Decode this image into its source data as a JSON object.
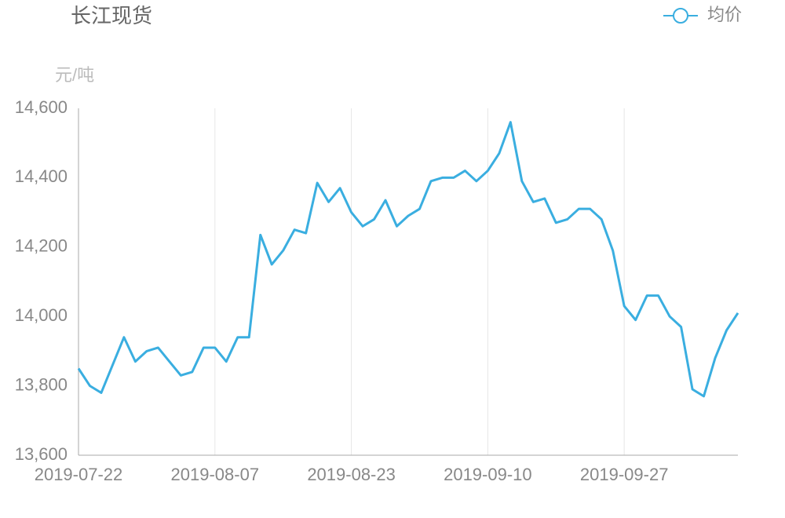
{
  "chart_data": {
    "type": "line",
    "title": "长江现货",
    "y_label": "元/吨",
    "categories": [
      "2019-07-22",
      null,
      null,
      null,
      null,
      null,
      null,
      null,
      null,
      null,
      null,
      null,
      "2019-08-07",
      null,
      null,
      null,
      null,
      null,
      null,
      null,
      null,
      null,
      null,
      null,
      "2019-08-23",
      null,
      null,
      null,
      null,
      null,
      null,
      null,
      null,
      null,
      null,
      null,
      "2019-09-10",
      null,
      null,
      null,
      null,
      null,
      null,
      null,
      null,
      null,
      null,
      null,
      "2019-09-27",
      null,
      null,
      null,
      null,
      null,
      null,
      null,
      null,
      null,
      null
    ],
    "series": [
      {
        "name": "均价",
        "color": "#3aaee0",
        "values": [
          13850,
          13800,
          13780,
          13860,
          13940,
          13870,
          13900,
          13910,
          13870,
          13830,
          13840,
          13910,
          13910,
          13870,
          13940,
          13940,
          14235,
          14150,
          14190,
          14250,
          14240,
          14385,
          14330,
          14370,
          14300,
          14260,
          14280,
          14335,
          14260,
          14290,
          14310,
          14390,
          14400,
          14400,
          14420,
          14390,
          14420,
          14470,
          14560,
          14390,
          14330,
          14340,
          14270,
          14280,
          14310,
          14310,
          14280,
          14190,
          14030,
          13990,
          14060,
          14060,
          14000,
          13970,
          13790,
          13770,
          13880,
          13960,
          14010
        ]
      }
    ],
    "ylim": [
      13600,
      14600
    ],
    "yticks": [
      {
        "value": 13600,
        "label": "13,600"
      },
      {
        "value": 13800,
        "label": "13,800"
      },
      {
        "value": 14000,
        "label": "14,000"
      },
      {
        "value": 14200,
        "label": "14,200"
      },
      {
        "value": 14400,
        "label": "14,400"
      },
      {
        "value": 14600,
        "label": "14,600"
      }
    ],
    "grid": "x",
    "legend": "top-right"
  }
}
